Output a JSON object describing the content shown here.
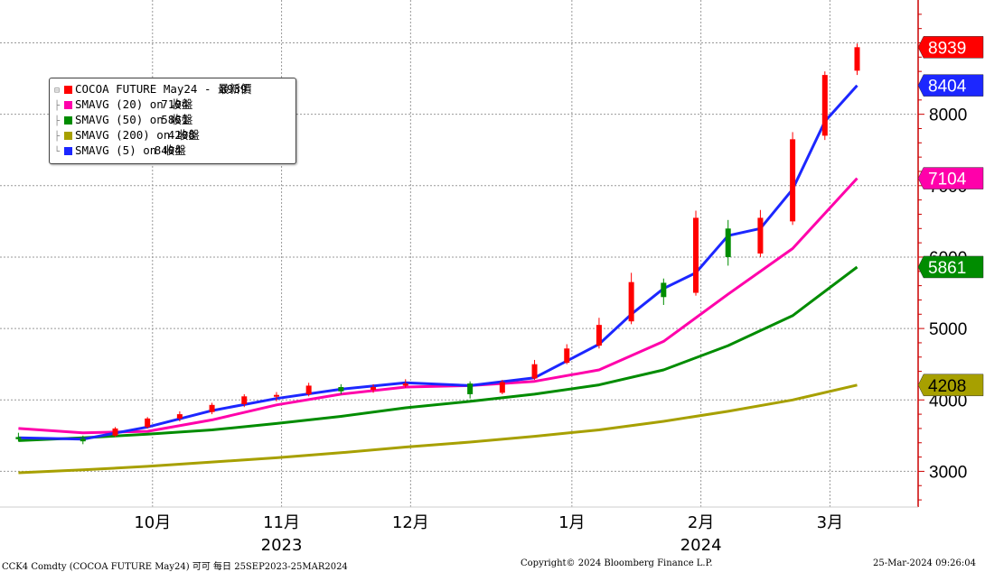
{
  "chart_data": {
    "type": "candlestick",
    "instrument": "COCOA FUTURE May24",
    "y_ticks": [
      3000,
      4000,
      5000,
      6000,
      7000,
      8000
    ],
    "ylim": [
      2500,
      9600
    ],
    "x_month_labels": [
      {
        "label": "10月",
        "date": "2023-10-09"
      },
      {
        "label": "11月",
        "date": "2023-11-06"
      },
      {
        "label": "12月",
        "date": "2023-12-04"
      },
      {
        "label": "1月",
        "date": "2024-01-08"
      },
      {
        "label": "2月",
        "date": "2024-02-05"
      },
      {
        "label": "3月",
        "date": "2024-03-04"
      }
    ],
    "x_year_labels": [
      {
        "label": "2023",
        "date": "2023-11-06"
      },
      {
        "label": "2024",
        "date": "2024-02-05"
      }
    ],
    "date_range": [
      "2023-09-25",
      "2024-03-25"
    ],
    "last_values": {
      "price": 8939,
      "sma20": 7104,
      "sma50": 5861,
      "sma200": 4208,
      "sma5": 8404
    },
    "candles": [
      {
        "date": "2023-09-25",
        "o": 3480,
        "h": 3540,
        "l": 3420,
        "c": 3450
      },
      {
        "date": "2023-10-09",
        "o": 3460,
        "h": 3500,
        "l": 3380,
        "c": 3420
      },
      {
        "date": "2023-10-16",
        "o": 3500,
        "h": 3620,
        "l": 3480,
        "c": 3600
      },
      {
        "date": "2023-10-23",
        "o": 3620,
        "h": 3760,
        "l": 3600,
        "c": 3740
      },
      {
        "date": "2023-10-30",
        "o": 3740,
        "h": 3840,
        "l": 3700,
        "c": 3800
      },
      {
        "date": "2023-11-06",
        "o": 3830,
        "h": 3960,
        "l": 3800,
        "c": 3930
      },
      {
        "date": "2023-11-13",
        "o": 3940,
        "h": 4080,
        "l": 3900,
        "c": 4050
      },
      {
        "date": "2023-11-20",
        "o": 4050,
        "h": 4110,
        "l": 3980,
        "c": 4070
      },
      {
        "date": "2023-11-27",
        "o": 4080,
        "h": 4240,
        "l": 4050,
        "c": 4200
      },
      {
        "date": "2023-12-04",
        "o": 4180,
        "h": 4220,
        "l": 4080,
        "c": 4120
      },
      {
        "date": "2023-12-11",
        "o": 4140,
        "h": 4220,
        "l": 4100,
        "c": 4180
      },
      {
        "date": "2023-12-18",
        "o": 4200,
        "h": 4290,
        "l": 4170,
        "c": 4230
      },
      {
        "date": "2024-01-01",
        "o": 4230,
        "h": 4260,
        "l": 4020,
        "c": 4080
      },
      {
        "date": "2024-01-08",
        "o": 4100,
        "h": 4280,
        "l": 4080,
        "c": 4250
      },
      {
        "date": "2024-01-15",
        "o": 4300,
        "h": 4560,
        "l": 4280,
        "c": 4500
      },
      {
        "date": "2024-01-22",
        "o": 4520,
        "h": 4780,
        "l": 4500,
        "c": 4720
      },
      {
        "date": "2024-01-29",
        "o": 4760,
        "h": 5150,
        "l": 4720,
        "c": 5050
      },
      {
        "date": "2024-02-05",
        "o": 5100,
        "h": 5780,
        "l": 5060,
        "c": 5650
      },
      {
        "date": "2024-02-12",
        "o": 5640,
        "h": 5700,
        "l": 5330,
        "c": 5440
      },
      {
        "date": "2024-02-19",
        "o": 5500,
        "h": 6650,
        "l": 5460,
        "c": 6550
      },
      {
        "date": "2024-02-26",
        "o": 6400,
        "h": 6520,
        "l": 5880,
        "c": 6000
      },
      {
        "date": "2024-03-04",
        "o": 6050,
        "h": 6660,
        "l": 6000,
        "c": 6550
      },
      {
        "date": "2024-03-11",
        "o": 6500,
        "h": 7750,
        "l": 6450,
        "c": 7650
      },
      {
        "date": "2024-03-18",
        "o": 7700,
        "h": 8600,
        "l": 7640,
        "c": 8550
      },
      {
        "date": "2024-03-25",
        "o": 8610,
        "h": 8990,
        "l": 8550,
        "c": 8939
      }
    ],
    "series": [
      {
        "name": "SMAVG (20) on 收盤",
        "key": "sma20",
        "color": "#ff00aa",
        "points": [
          [
            "2023-09-25",
            3600
          ],
          [
            "2023-10-09",
            3540
          ],
          [
            "2023-10-23",
            3560
          ],
          [
            "2023-11-06",
            3720
          ],
          [
            "2023-11-20",
            3930
          ],
          [
            "2023-12-04",
            4080
          ],
          [
            "2023-12-18",
            4180
          ],
          [
            "2024-01-01",
            4200
          ],
          [
            "2024-01-15",
            4260
          ],
          [
            "2024-01-29",
            4420
          ],
          [
            "2024-02-12",
            4820
          ],
          [
            "2024-02-26",
            5480
          ],
          [
            "2024-03-11",
            6120
          ],
          [
            "2024-03-25",
            7104
          ]
        ]
      },
      {
        "name": "SMAVG (50) on 收盤",
        "key": "sma50",
        "color": "#008c00",
        "points": [
          [
            "2023-09-25",
            3430
          ],
          [
            "2023-10-09",
            3470
          ],
          [
            "2023-10-23",
            3520
          ],
          [
            "2023-11-06",
            3580
          ],
          [
            "2023-11-20",
            3670
          ],
          [
            "2023-12-04",
            3770
          ],
          [
            "2023-12-18",
            3890
          ],
          [
            "2024-01-01",
            3980
          ],
          [
            "2024-01-15",
            4080
          ],
          [
            "2024-01-29",
            4210
          ],
          [
            "2024-02-12",
            4420
          ],
          [
            "2024-02-26",
            4760
          ],
          [
            "2024-03-11",
            5180
          ],
          [
            "2024-03-25",
            5861
          ]
        ]
      },
      {
        "name": "SMAVG (200) on 收盤",
        "key": "sma200",
        "color": "#a7a000",
        "points": [
          [
            "2023-09-25",
            2980
          ],
          [
            "2023-10-09",
            3020
          ],
          [
            "2023-10-23",
            3070
          ],
          [
            "2023-11-06",
            3130
          ],
          [
            "2023-11-20",
            3190
          ],
          [
            "2023-12-04",
            3260
          ],
          [
            "2023-12-18",
            3340
          ],
          [
            "2024-01-01",
            3410
          ],
          [
            "2024-01-15",
            3490
          ],
          [
            "2024-01-29",
            3580
          ],
          [
            "2024-02-12",
            3700
          ],
          [
            "2024-02-26",
            3840
          ],
          [
            "2024-03-11",
            4000
          ],
          [
            "2024-03-25",
            4208
          ]
        ]
      },
      {
        "name": "SMAVG (5) on 收盤",
        "key": "sma5",
        "color": "#1c27ff",
        "points": [
          [
            "2023-09-25",
            3470
          ],
          [
            "2023-10-09",
            3450
          ],
          [
            "2023-10-23",
            3620
          ],
          [
            "2023-11-06",
            3850
          ],
          [
            "2023-11-20",
            4020
          ],
          [
            "2023-12-04",
            4150
          ],
          [
            "2023-12-18",
            4240
          ],
          [
            "2024-01-01",
            4200
          ],
          [
            "2024-01-15",
            4310
          ],
          [
            "2024-01-29",
            4780
          ],
          [
            "2024-02-05",
            5200
          ],
          [
            "2024-02-12",
            5560
          ],
          [
            "2024-02-19",
            5780
          ],
          [
            "2024-02-26",
            6300
          ],
          [
            "2024-03-04",
            6400
          ],
          [
            "2024-03-11",
            6950
          ],
          [
            "2024-03-18",
            7900
          ],
          [
            "2024-03-25",
            8404
          ]
        ]
      }
    ]
  },
  "legend": {
    "items": [
      {
        "label": "COCOA FUTURE May24 - 最新價",
        "value": "8939",
        "color": "#ff0000"
      },
      {
        "label": "SMAVG (20)  on 收盤",
        "value": "7104",
        "color": "#ff00aa"
      },
      {
        "label": "SMAVG (50)  on 收盤",
        "value": "5861",
        "color": "#008c00"
      },
      {
        "label": "SMAVG (200)  on 收盤",
        "value": "4208",
        "color": "#a7a000"
      },
      {
        "label": "SMAVG (5)  on 收盤",
        "value": "8404",
        "color": "#1c27ff"
      }
    ]
  },
  "value_tags": [
    {
      "text": "8939",
      "value": 8939,
      "color": "#ff0000",
      "text_color": "#ffffff"
    },
    {
      "text": "8404",
      "value": 8404,
      "color": "#1c27ff",
      "text_color": "#ffffff"
    },
    {
      "text": "7104",
      "value": 7104,
      "color": "#ff00aa",
      "text_color": "#ffffff"
    },
    {
      "text": "5861",
      "value": 5861,
      "color": "#008c00",
      "text_color": "#ffffff"
    },
    {
      "text": "4208",
      "value": 4208,
      "color": "#a7a000",
      "text_color": "#000000"
    }
  ],
  "colors": {
    "up": "#ff0000",
    "down": "#008c00",
    "axis": "#cc0000",
    "grid": "#999999"
  },
  "footer": {
    "left": "CCK4 Comdty (COCOA FUTURE      May24) 可可  每日 25SEP2023-25MAR2024",
    "center": "Copyright© 2024 Bloomberg Finance L.P.",
    "right": "25-Mar-2024 09:26:04"
  }
}
